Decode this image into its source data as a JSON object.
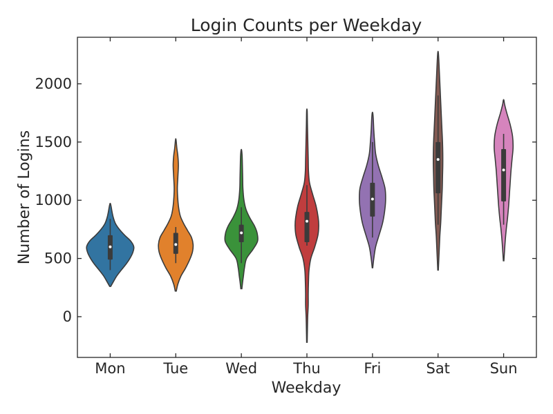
{
  "chart_data": {
    "type": "violin",
    "title": "Login Counts per Weekday",
    "xlabel": "Weekday",
    "ylabel": "Number of Logins",
    "ylim": [
      -350,
      2400
    ],
    "yticks": [
      0,
      500,
      1000,
      1500,
      2000
    ],
    "grid": false,
    "categories": [
      "Mon",
      "Tue",
      "Wed",
      "Thu",
      "Fri",
      "Sat",
      "Sun"
    ],
    "colors": [
      "#3274a1",
      "#e1812c",
      "#3a923a",
      "#c03d3e",
      "#9372b2",
      "#845b53",
      "#d684bd"
    ],
    "series": [
      {
        "category": "Mon",
        "min": 260,
        "max": 970,
        "q1": 490,
        "median": 600,
        "q3": 700,
        "whisker_low": 400,
        "whisker_high": 840,
        "profile": [
          [
            260,
            0.02
          ],
          [
            300,
            0.12
          ],
          [
            350,
            0.25
          ],
          [
            400,
            0.42
          ],
          [
            450,
            0.6
          ],
          [
            500,
            0.75
          ],
          [
            550,
            0.86
          ],
          [
            600,
            0.9
          ],
          [
            650,
            0.78
          ],
          [
            700,
            0.55
          ],
          [
            750,
            0.35
          ],
          [
            800,
            0.2
          ],
          [
            850,
            0.12
          ],
          [
            900,
            0.07
          ],
          [
            940,
            0.04
          ],
          [
            970,
            0.01
          ]
        ]
      },
      {
        "category": "Tue",
        "min": 220,
        "max": 1520,
        "q1": 540,
        "median": 620,
        "q3": 720,
        "whisker_low": 460,
        "whisker_high": 770,
        "profile": [
          [
            220,
            0.02
          ],
          [
            280,
            0.08
          ],
          [
            350,
            0.2
          ],
          [
            420,
            0.38
          ],
          [
            500,
            0.55
          ],
          [
            560,
            0.64
          ],
          [
            620,
            0.66
          ],
          [
            680,
            0.6
          ],
          [
            740,
            0.45
          ],
          [
            800,
            0.3
          ],
          [
            860,
            0.18
          ],
          [
            920,
            0.12
          ],
          [
            1000,
            0.08
          ],
          [
            1100,
            0.06
          ],
          [
            1200,
            0.08
          ],
          [
            1300,
            0.1
          ],
          [
            1380,
            0.08
          ],
          [
            1450,
            0.04
          ],
          [
            1520,
            0.01
          ]
        ]
      },
      {
        "category": "Wed",
        "min": 240,
        "max": 1430,
        "q1": 640,
        "median": 720,
        "q3": 790,
        "whisker_low": 460,
        "whisker_high": 940,
        "profile": [
          [
            240,
            0.02
          ],
          [
            300,
            0.05
          ],
          [
            350,
            0.08
          ],
          [
            420,
            0.12
          ],
          [
            500,
            0.2
          ],
          [
            580,
            0.45
          ],
          [
            650,
            0.62
          ],
          [
            720,
            0.6
          ],
          [
            780,
            0.5
          ],
          [
            850,
            0.32
          ],
          [
            920,
            0.18
          ],
          [
            1000,
            0.1
          ],
          [
            1100,
            0.06
          ],
          [
            1200,
            0.05
          ],
          [
            1300,
            0.04
          ],
          [
            1380,
            0.03
          ],
          [
            1430,
            0.01
          ]
        ]
      },
      {
        "category": "Thu",
        "min": -220,
        "max": 1770,
        "q1": 640,
        "median": 820,
        "q3": 900,
        "whisker_low": 610,
        "whisker_high": 1130,
        "profile": [
          [
            -220,
            0.01
          ],
          [
            -100,
            0.02
          ],
          [
            0,
            0.03
          ],
          [
            100,
            0.05
          ],
          [
            200,
            0.05
          ],
          [
            300,
            0.06
          ],
          [
            400,
            0.08
          ],
          [
            500,
            0.15
          ],
          [
            600,
            0.3
          ],
          [
            700,
            0.42
          ],
          [
            780,
            0.45
          ],
          [
            850,
            0.43
          ],
          [
            950,
            0.35
          ],
          [
            1050,
            0.22
          ],
          [
            1150,
            0.1
          ],
          [
            1250,
            0.06
          ],
          [
            1350,
            0.05
          ],
          [
            1450,
            0.04
          ],
          [
            1550,
            0.03
          ],
          [
            1650,
            0.02
          ],
          [
            1770,
            0.01
          ]
        ]
      },
      {
        "category": "Fri",
        "min": 420,
        "max": 1750,
        "q1": 860,
        "median": 1010,
        "q3": 1150,
        "whisker_low": 680,
        "whisker_high": 1500,
        "profile": [
          [
            420,
            0.01
          ],
          [
            500,
            0.05
          ],
          [
            600,
            0.12
          ],
          [
            700,
            0.25
          ],
          [
            800,
            0.38
          ],
          [
            900,
            0.46
          ],
          [
            1000,
            0.5
          ],
          [
            1100,
            0.48
          ],
          [
            1200,
            0.36
          ],
          [
            1300,
            0.22
          ],
          [
            1400,
            0.12
          ],
          [
            1500,
            0.08
          ],
          [
            1600,
            0.05
          ],
          [
            1700,
            0.03
          ],
          [
            1750,
            0.01
          ]
        ]
      },
      {
        "category": "Sat",
        "min": 400,
        "max": 2270,
        "q1": 1060,
        "median": 1350,
        "q3": 1500,
        "whisker_low": 790,
        "whisker_high": 1900,
        "profile": [
          [
            400,
            0.01
          ],
          [
            500,
            0.03
          ],
          [
            600,
            0.05
          ],
          [
            700,
            0.07
          ],
          [
            800,
            0.1
          ],
          [
            900,
            0.12
          ],
          [
            1000,
            0.14
          ],
          [
            1100,
            0.16
          ],
          [
            1200,
            0.17
          ],
          [
            1300,
            0.18
          ],
          [
            1400,
            0.18
          ],
          [
            1500,
            0.17
          ],
          [
            1600,
            0.15
          ],
          [
            1700,
            0.13
          ],
          [
            1800,
            0.11
          ],
          [
            1900,
            0.09
          ],
          [
            2000,
            0.07
          ],
          [
            2100,
            0.05
          ],
          [
            2200,
            0.03
          ],
          [
            2270,
            0.01
          ]
        ]
      },
      {
        "category": "Sun",
        "min": 480,
        "max": 1860,
        "q1": 990,
        "median": 1260,
        "q3": 1440,
        "whisker_low": 790,
        "whisker_high": 1570,
        "profile": [
          [
            480,
            0.01
          ],
          [
            550,
            0.03
          ],
          [
            650,
            0.06
          ],
          [
            750,
            0.1
          ],
          [
            850,
            0.15
          ],
          [
            950,
            0.19
          ],
          [
            1050,
            0.22
          ],
          [
            1150,
            0.25
          ],
          [
            1250,
            0.28
          ],
          [
            1350,
            0.32
          ],
          [
            1450,
            0.36
          ],
          [
            1550,
            0.34
          ],
          [
            1650,
            0.25
          ],
          [
            1750,
            0.12
          ],
          [
            1820,
            0.04
          ],
          [
            1860,
            0.01
          ]
        ]
      }
    ]
  }
}
